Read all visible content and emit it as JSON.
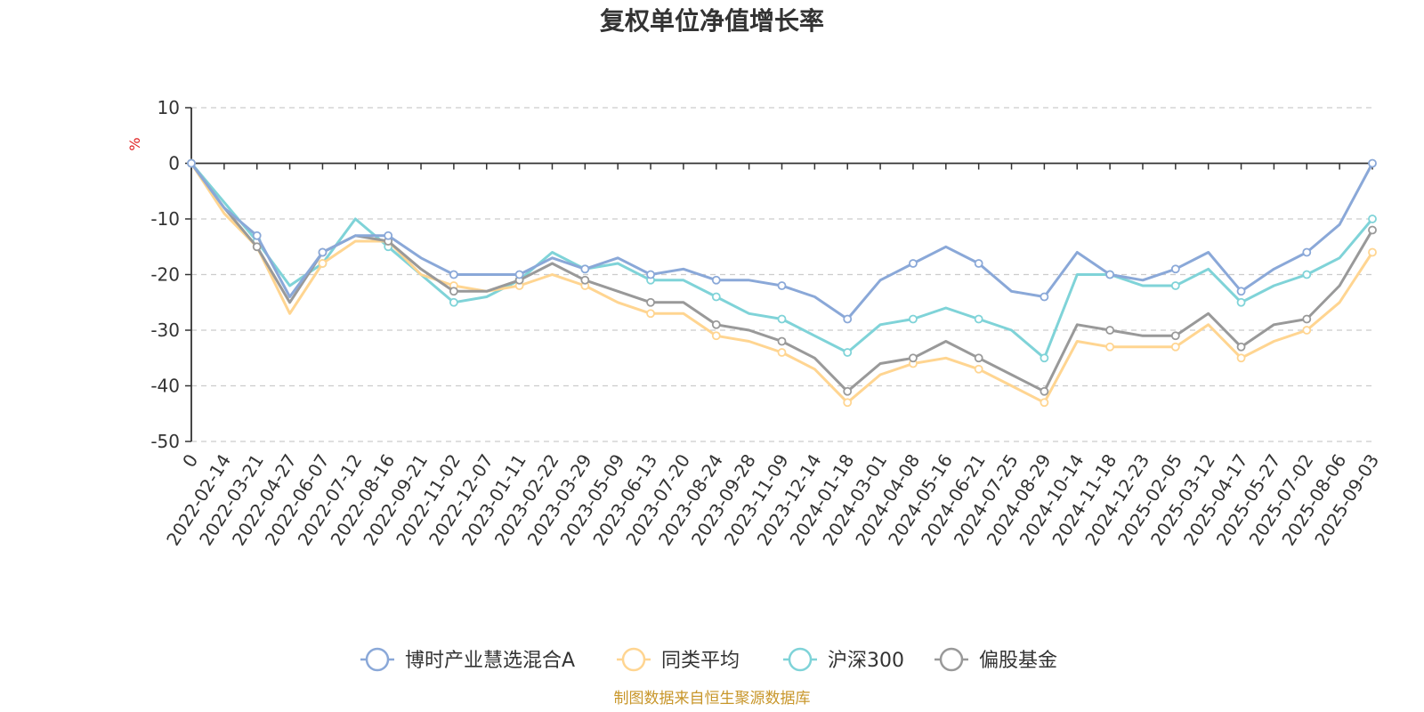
{
  "chart_data": {
    "type": "line",
    "title": "复权单位净值增长率",
    "ylabel": "%",
    "ylim": [
      -50,
      10
    ],
    "yticks": [
      10,
      0,
      -10,
      -20,
      -30,
      -40,
      -50
    ],
    "grid": true,
    "legend": "bottom",
    "x": [
      "0",
      "2022-02-14",
      "2022-03-21",
      "2022-04-27",
      "2022-06-07",
      "2022-07-12",
      "2022-08-16",
      "2022-09-21",
      "2022-11-02",
      "2022-12-07",
      "2023-01-11",
      "2023-02-22",
      "2023-03-29",
      "2023-05-09",
      "2023-06-13",
      "2023-07-20",
      "2023-08-24",
      "2023-09-28",
      "2023-11-09",
      "2023-12-14",
      "2024-01-18",
      "2024-03-01",
      "2024-04-08",
      "2024-05-16",
      "2024-06-21",
      "2024-07-25",
      "2024-08-29",
      "2024-10-14",
      "2024-11-18",
      "2024-12-23",
      "2025-02-05",
      "2025-03-12",
      "2025-04-17",
      "2025-05-27",
      "2025-07-02",
      "2025-08-06",
      "2025-09-03"
    ],
    "series": [
      {
        "name": "博时产业慧选混合A",
        "color": "#8aa8d8",
        "values": [
          0,
          -8,
          -13,
          -24,
          -16,
          -13,
          -13,
          -17,
          -20,
          -20,
          -20,
          -17,
          -19,
          -17,
          -20,
          -19,
          -21,
          -21,
          -22,
          -24,
          -28,
          -21,
          -18,
          -15,
          -18,
          -23,
          -24,
          -16,
          -20,
          -21,
          -19,
          -16,
          -23,
          -19,
          -16,
          -11,
          0
        ]
      },
      {
        "name": "同类平均",
        "color": "#ffd591",
        "values": [
          0,
          -9,
          -15,
          -27,
          -18,
          -14,
          -14,
          -20,
          -22,
          -23,
          -22,
          -20,
          -22,
          -25,
          -27,
          -27,
          -31,
          -32,
          -34,
          -37,
          -43,
          -38,
          -36,
          -35,
          -37,
          -40,
          -43,
          -32,
          -33,
          -33,
          -33,
          -29,
          -35,
          -32,
          -30,
          -25,
          -16
        ]
      },
      {
        "name": "沪深300",
        "color": "#7fd3d8",
        "values": [
          0,
          -7,
          -14,
          -22,
          -18,
          -10,
          -15,
          -20,
          -25,
          -24,
          -21,
          -16,
          -19,
          -18,
          -21,
          -21,
          -24,
          -27,
          -28,
          -31,
          -34,
          -29,
          -28,
          -26,
          -28,
          -30,
          -35,
          -20,
          -20,
          -22,
          -22,
          -19,
          -25,
          -22,
          -20,
          -17,
          -10
        ]
      },
      {
        "name": "偏股基金",
        "color": "#999999",
        "values": [
          0,
          -8,
          -15,
          -25,
          -16,
          -13,
          -14,
          -19,
          -23,
          -23,
          -21,
          -18,
          -21,
          -23,
          -25,
          -25,
          -29,
          -30,
          -32,
          -35,
          -41,
          -36,
          -35,
          -32,
          -35,
          -38,
          -41,
          -29,
          -30,
          -31,
          -31,
          -27,
          -33,
          -29,
          -28,
          -22,
          -12
        ]
      }
    ]
  },
  "source": "制图数据来自恒生聚源数据库"
}
